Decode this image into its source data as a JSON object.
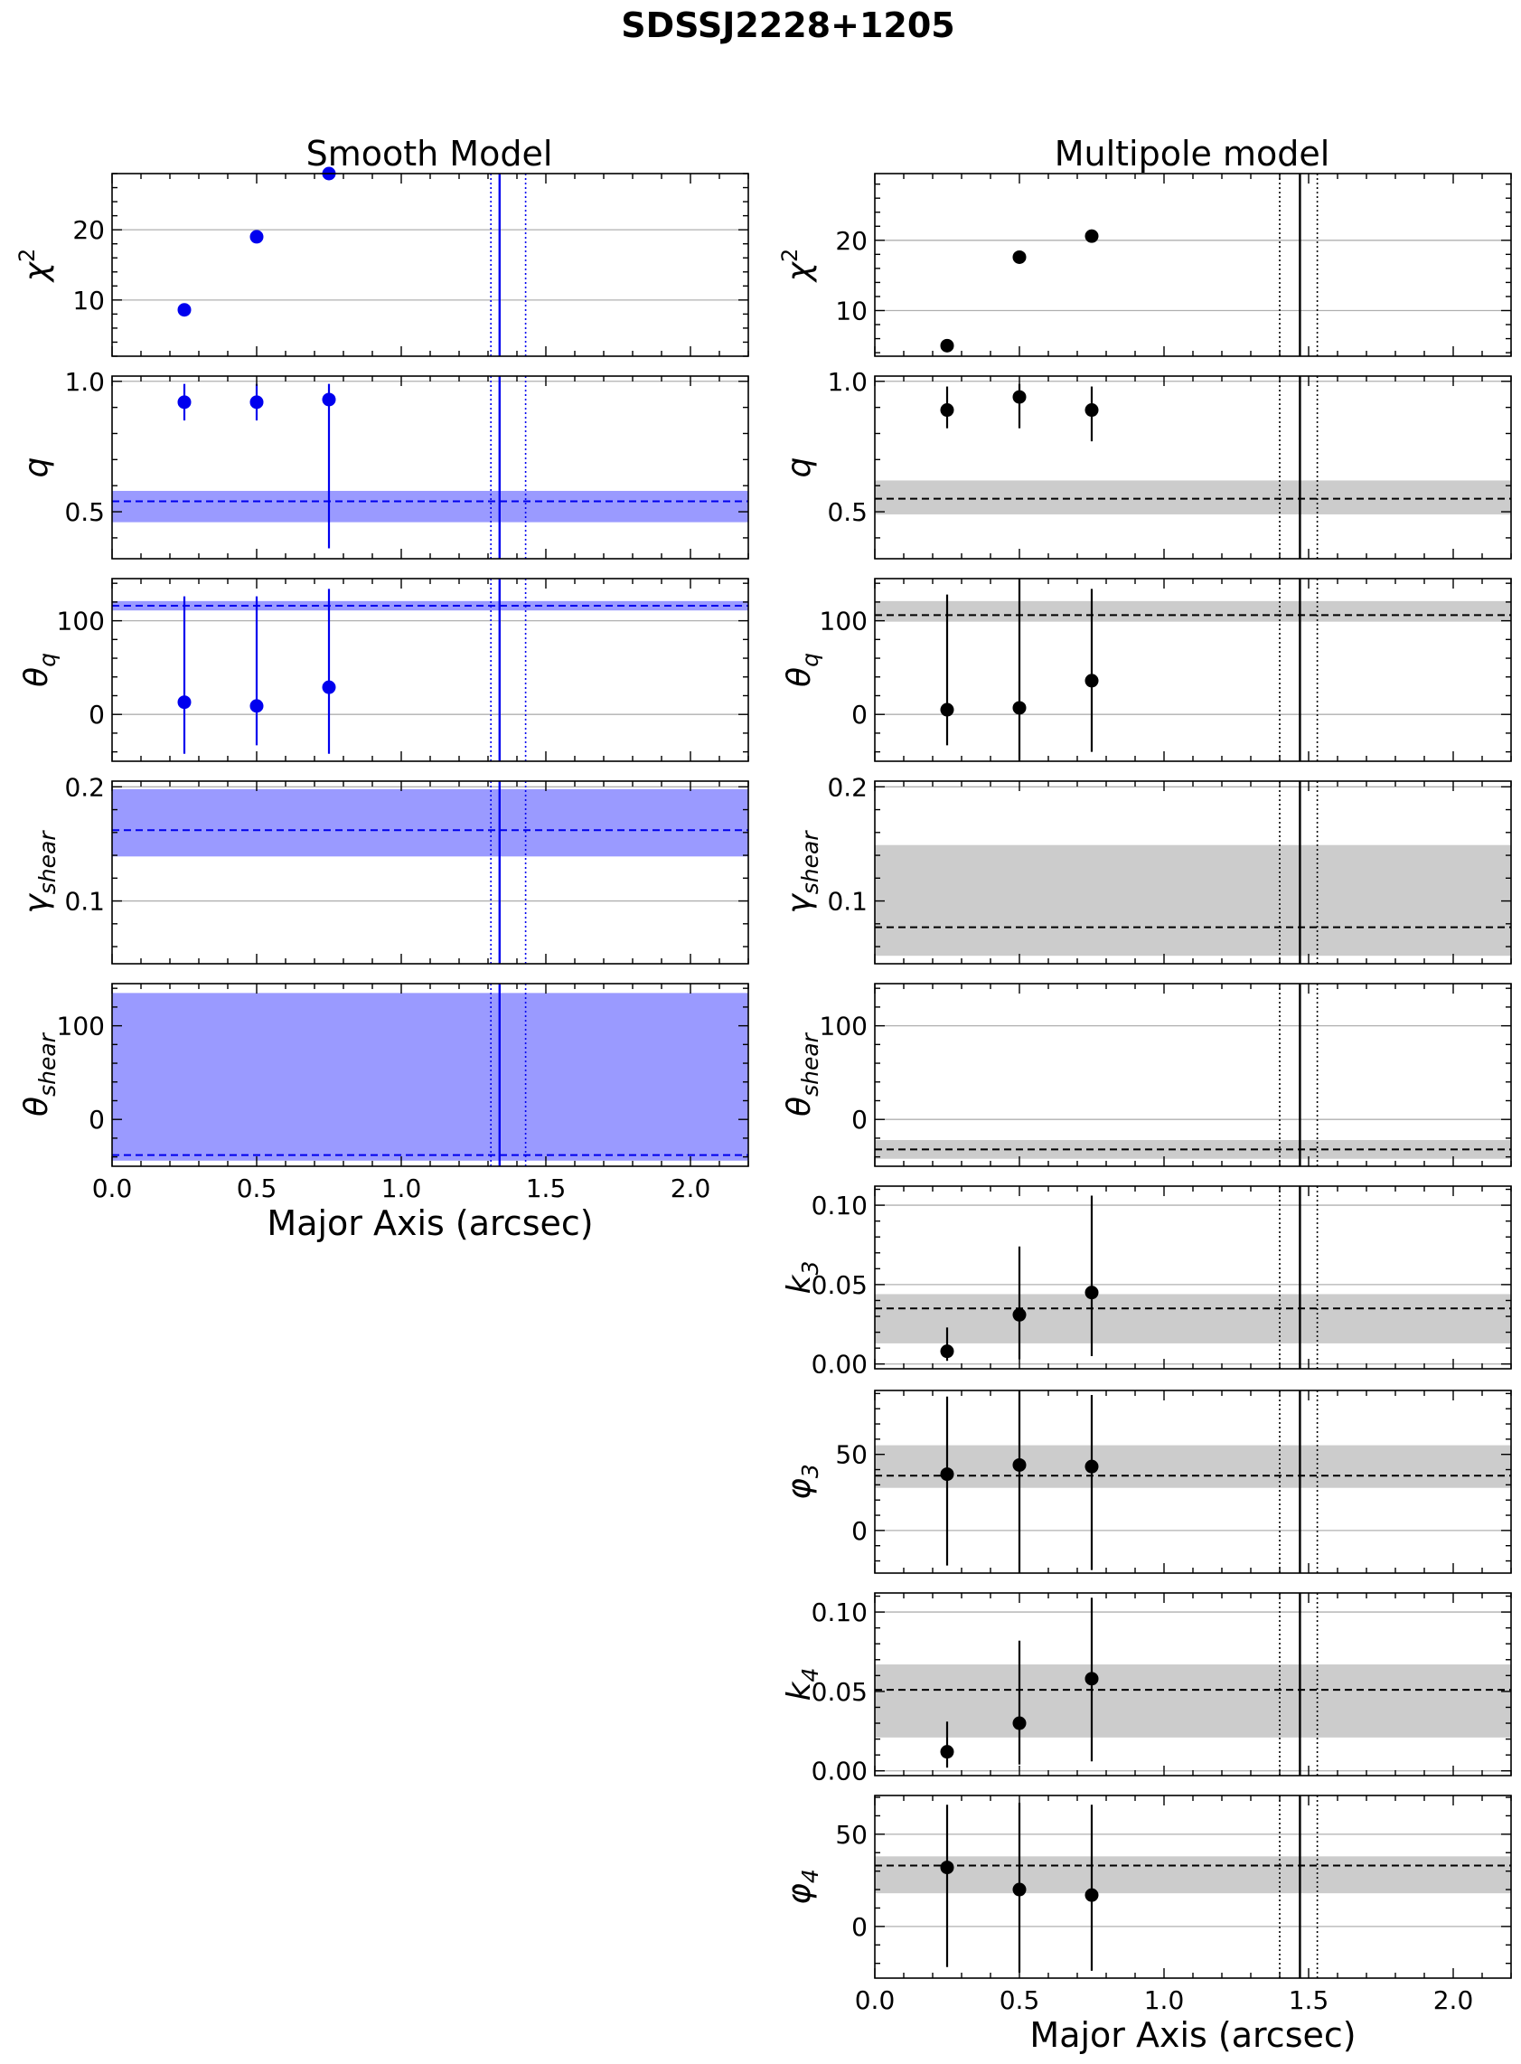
{
  "figure": {
    "title": "SDSSJ2228+1205",
    "columns": [
      {
        "id": "smooth",
        "title": "Smooth Model"
      },
      {
        "id": "multipole",
        "title": "Multipole model"
      }
    ],
    "xlabel": "Major Axis (arcsec)",
    "x_tick_labels": [
      "0.0",
      "0.5",
      "1.0",
      "1.5",
      "2.0"
    ]
  },
  "colors": {
    "smooth": "#0000ee",
    "smooth_band": "#9a9aff",
    "multipole": "#000000",
    "multipole_band": "#cccccc",
    "grid": "#b0b0b0"
  },
  "chart_data": [
    {
      "id": "smooth-chi2",
      "column": "smooth",
      "type": "scatter",
      "ylabel": "χ²",
      "ylabel_main": "χ",
      "ylabel_sup": "2",
      "ylabel_sub": "",
      "xlim": [
        0.0,
        2.2
      ],
      "ylim": [
        2.0,
        28.0
      ],
      "yticks": [
        10,
        20
      ],
      "ytick_labels": [
        "10",
        "20"
      ],
      "x": [
        0.25,
        0.5,
        0.75
      ],
      "y": [
        8.6,
        19.0,
        28.0
      ],
      "yerr_lo": [
        null,
        null,
        null
      ],
      "yerr_hi": [
        null,
        null,
        null
      ],
      "band": null,
      "vline": 1.34,
      "vline_dotted": [
        1.31,
        1.43
      ],
      "grid_y": true
    },
    {
      "id": "smooth-q",
      "column": "smooth",
      "type": "scatter",
      "ylabel": "q",
      "ylabel_main": "q",
      "ylabel_sup": "",
      "ylabel_sub": "",
      "xlim": [
        0.0,
        2.2
      ],
      "ylim": [
        0.32,
        1.02
      ],
      "yticks": [
        0.5,
        1.0
      ],
      "ytick_labels": [
        "0.5",
        "1.0"
      ],
      "x": [
        0.25,
        0.5,
        0.75
      ],
      "y": [
        0.92,
        0.92,
        0.93
      ],
      "yerr_lo": [
        0.85,
        0.85,
        0.36
      ],
      "yerr_hi": [
        0.99,
        0.99,
        0.99
      ],
      "band": {
        "center": 0.54,
        "low": 0.46,
        "high": 0.58
      },
      "vline": 1.34,
      "vline_dotted": [
        1.31,
        1.43
      ],
      "grid_y": true
    },
    {
      "id": "smooth-theta-q",
      "column": "smooth",
      "type": "scatter",
      "ylabel": "θ_q",
      "ylabel_main": "θ",
      "ylabel_sup": "",
      "ylabel_sub": "q",
      "xlim": [
        0.0,
        2.2
      ],
      "ylim": [
        -50.0,
        145.0
      ],
      "yticks": [
        0,
        100
      ],
      "ytick_labels": [
        "0",
        "100"
      ],
      "x": [
        0.25,
        0.5,
        0.75
      ],
      "y": [
        13.0,
        9.0,
        29.0
      ],
      "yerr_lo": [
        -42.0,
        -33.0,
        -42.0
      ],
      "yerr_hi": [
        126.0,
        126.0,
        134.0
      ],
      "band": {
        "center": 116.0,
        "low": 111.0,
        "high": 121.0
      },
      "vline": 1.34,
      "vline_dotted": [
        1.31,
        1.43
      ],
      "grid_y": true
    },
    {
      "id": "smooth-gamma-shear",
      "column": "smooth",
      "type": "scatter",
      "ylabel": "γ_shear",
      "ylabel_main": "γ",
      "ylabel_sup": "",
      "ylabel_sub": "shear",
      "xlim": [
        0.0,
        2.2
      ],
      "ylim": [
        0.045,
        0.205
      ],
      "yticks": [
        0.1,
        0.2
      ],
      "ytick_labels": [
        "0.1",
        "0.2"
      ],
      "x": [],
      "y": [],
      "yerr_lo": [],
      "yerr_hi": [],
      "band": {
        "center": 0.162,
        "low": 0.139,
        "high": 0.198
      },
      "vline": 1.34,
      "vline_dotted": [
        1.31,
        1.43
      ],
      "grid_y": true
    },
    {
      "id": "smooth-theta-shear",
      "column": "smooth",
      "type": "scatter",
      "ylabel": "θ_shear",
      "ylabel_main": "θ",
      "ylabel_sup": "",
      "ylabel_sub": "shear",
      "xlim": [
        0.0,
        2.2
      ],
      "ylim": [
        -50.0,
        145.0
      ],
      "yticks": [
        0,
        100
      ],
      "ytick_labels": [
        "0",
        "100"
      ],
      "x": [],
      "y": [],
      "yerr_lo": [],
      "yerr_hi": [],
      "band": {
        "center": -38.0,
        "low": -44.0,
        "high": 135.0
      },
      "vline": 1.34,
      "vline_dotted": [
        1.31,
        1.43
      ],
      "grid_y": true,
      "show_x_ticklabels": true,
      "show_xlabel": true
    },
    {
      "id": "multipole-chi2",
      "column": "multipole",
      "type": "scatter",
      "ylabel": "χ²",
      "ylabel_main": "χ",
      "ylabel_sup": "2",
      "ylabel_sub": "",
      "xlim": [
        0.0,
        2.2
      ],
      "ylim": [
        3.5,
        29.5
      ],
      "yticks": [
        10,
        20
      ],
      "ytick_labels": [
        "10",
        "20"
      ],
      "x": [
        0.25,
        0.5,
        0.75
      ],
      "y": [
        5.0,
        17.6,
        20.6
      ],
      "yerr_lo": [
        null,
        null,
        null
      ],
      "yerr_hi": [
        null,
        null,
        null
      ],
      "band": null,
      "vline": 1.47,
      "vline_dotted": [
        1.4,
        1.53
      ],
      "grid_y": true
    },
    {
      "id": "multipole-q",
      "column": "multipole",
      "type": "scatter",
      "ylabel": "q",
      "ylabel_main": "q",
      "ylabel_sup": "",
      "ylabel_sub": "",
      "xlim": [
        0.0,
        2.2
      ],
      "ylim": [
        0.32,
        1.02
      ],
      "yticks": [
        0.5,
        1.0
      ],
      "ytick_labels": [
        "0.5",
        "1.0"
      ],
      "x": [
        0.25,
        0.5,
        0.75
      ],
      "y": [
        0.89,
        0.94,
        0.89
      ],
      "yerr_lo": [
        0.82,
        0.82,
        0.77
      ],
      "yerr_hi": [
        0.98,
        0.99,
        0.98
      ],
      "band": {
        "center": 0.55,
        "low": 0.49,
        "high": 0.62
      },
      "vline": 1.47,
      "vline_dotted": [
        1.4,
        1.53
      ],
      "grid_y": true
    },
    {
      "id": "multipole-theta-q",
      "column": "multipole",
      "type": "scatter",
      "ylabel": "θ_q",
      "ylabel_main": "θ",
      "ylabel_sup": "",
      "ylabel_sub": "q",
      "xlim": [
        0.0,
        2.2
      ],
      "ylim": [
        -50.0,
        145.0
      ],
      "yticks": [
        0,
        100
      ],
      "ytick_labels": [
        "0",
        "100"
      ],
      "x": [
        0.25,
        0.5,
        0.75
      ],
      "y": [
        5.0,
        7.0,
        36.0
      ],
      "yerr_lo": [
        -33.0,
        -50.0,
        -40.0
      ],
      "yerr_hi": [
        128.0,
        145.0,
        134.0
      ],
      "band": {
        "center": 106.0,
        "low": 99.0,
        "high": 121.0
      },
      "vline": 1.47,
      "vline_dotted": [
        1.4,
        1.53
      ],
      "grid_y": true
    },
    {
      "id": "multipole-gamma-shear",
      "column": "multipole",
      "type": "scatter",
      "ylabel": "γ_shear",
      "ylabel_main": "γ",
      "ylabel_sup": "",
      "ylabel_sub": "shear",
      "xlim": [
        0.0,
        2.2
      ],
      "ylim": [
        0.045,
        0.205
      ],
      "yticks": [
        0.1,
        0.2
      ],
      "ytick_labels": [
        "0.1",
        "0.2"
      ],
      "x": [],
      "y": [],
      "yerr_lo": [],
      "yerr_hi": [],
      "band": {
        "center": 0.077,
        "low": 0.052,
        "high": 0.149
      },
      "vline": 1.47,
      "vline_dotted": [
        1.4,
        1.53
      ],
      "grid_y": true
    },
    {
      "id": "multipole-theta-shear",
      "column": "multipole",
      "type": "scatter",
      "ylabel": "θ_shear",
      "ylabel_main": "θ",
      "ylabel_sup": "",
      "ylabel_sub": "shear",
      "xlim": [
        0.0,
        2.2
      ],
      "ylim": [
        -50.0,
        145.0
      ],
      "yticks": [
        0,
        100
      ],
      "ytick_labels": [
        "0",
        "100"
      ],
      "x": [],
      "y": [],
      "yerr_lo": [],
      "yerr_hi": [],
      "band": {
        "center": -32.0,
        "low": -42.0,
        "high": -22.0
      },
      "vline": 1.47,
      "vline_dotted": [
        1.4,
        1.53
      ],
      "grid_y": true
    },
    {
      "id": "multipole-k3",
      "column": "multipole",
      "type": "scatter",
      "ylabel": "k_3",
      "ylabel_main": "k",
      "ylabel_sup": "",
      "ylabel_sub": "3",
      "xlim": [
        0.0,
        2.2
      ],
      "ylim": [
        -0.003,
        0.112
      ],
      "yticks": [
        0.0,
        0.05,
        0.1
      ],
      "ytick_labels": [
        "0.00",
        "0.05",
        "0.10"
      ],
      "x": [
        0.25,
        0.5,
        0.75
      ],
      "y": [
        0.008,
        0.031,
        0.045
      ],
      "yerr_lo": [
        0.002,
        0.003,
        0.005
      ],
      "yerr_hi": [
        0.023,
        0.074,
        0.106
      ],
      "band": {
        "center": 0.035,
        "low": 0.013,
        "high": 0.044
      },
      "vline": 1.47,
      "vline_dotted": [
        1.4,
        1.53
      ],
      "grid_y": true
    },
    {
      "id": "multipole-phi3",
      "column": "multipole",
      "type": "scatter",
      "ylabel": "φ_3",
      "ylabel_main": "φ",
      "ylabel_sup": "",
      "ylabel_sub": "3",
      "xlim": [
        0.0,
        2.2
      ],
      "ylim": [
        -28.0,
        92.0
      ],
      "yticks": [
        0,
        50
      ],
      "ytick_labels": [
        "0",
        "50"
      ],
      "x": [
        0.25,
        0.5,
        0.75
      ],
      "y": [
        37.0,
        43.0,
        42.0
      ],
      "yerr_lo": [
        -23.0,
        -28.0,
        -26.0
      ],
      "yerr_hi": [
        88.0,
        92.0,
        89.0
      ],
      "band": {
        "center": 36.0,
        "low": 28.0,
        "high": 56.0
      },
      "vline": 1.47,
      "vline_dotted": [
        1.4,
        1.53
      ],
      "grid_y": true
    },
    {
      "id": "multipole-k4",
      "column": "multipole",
      "type": "scatter",
      "ylabel": "k_4",
      "ylabel_main": "k",
      "ylabel_sup": "",
      "ylabel_sub": "4",
      "xlim": [
        0.0,
        2.2
      ],
      "ylim": [
        -0.003,
        0.112
      ],
      "yticks": [
        0.0,
        0.05,
        0.1
      ],
      "ytick_labels": [
        "0.00",
        "0.05",
        "0.10"
      ],
      "x": [
        0.25,
        0.5,
        0.75
      ],
      "y": [
        0.012,
        0.03,
        0.058
      ],
      "yerr_lo": [
        0.002,
        0.004,
        0.006
      ],
      "yerr_hi": [
        0.031,
        0.082,
        0.109
      ],
      "band": {
        "center": 0.051,
        "low": 0.021,
        "high": 0.067
      },
      "vline": 1.47,
      "vline_dotted": [
        1.4,
        1.53
      ],
      "grid_y": true
    },
    {
      "id": "multipole-phi4",
      "column": "multipole",
      "type": "scatter",
      "ylabel": "φ_4",
      "ylabel_main": "φ",
      "ylabel_sup": "",
      "ylabel_sub": "4",
      "xlim": [
        0.0,
        2.2
      ],
      "ylim": [
        -28.0,
        71.0
      ],
      "yticks": [
        0,
        50
      ],
      "ytick_labels": [
        "0",
        "50"
      ],
      "x": [
        0.25,
        0.5,
        0.75
      ],
      "y": [
        32.0,
        20.0,
        17.0
      ],
      "yerr_lo": [
        -22.0,
        -25.0,
        -24.0
      ],
      "yerr_hi": [
        66.0,
        67.0,
        66.0
      ],
      "band": {
        "center": 33.0,
        "low": 18.0,
        "high": 38.0
      },
      "vline": 1.47,
      "vline_dotted": [
        1.4,
        1.53
      ],
      "grid_y": true,
      "show_x_ticklabels": true,
      "show_xlabel": true
    }
  ]
}
